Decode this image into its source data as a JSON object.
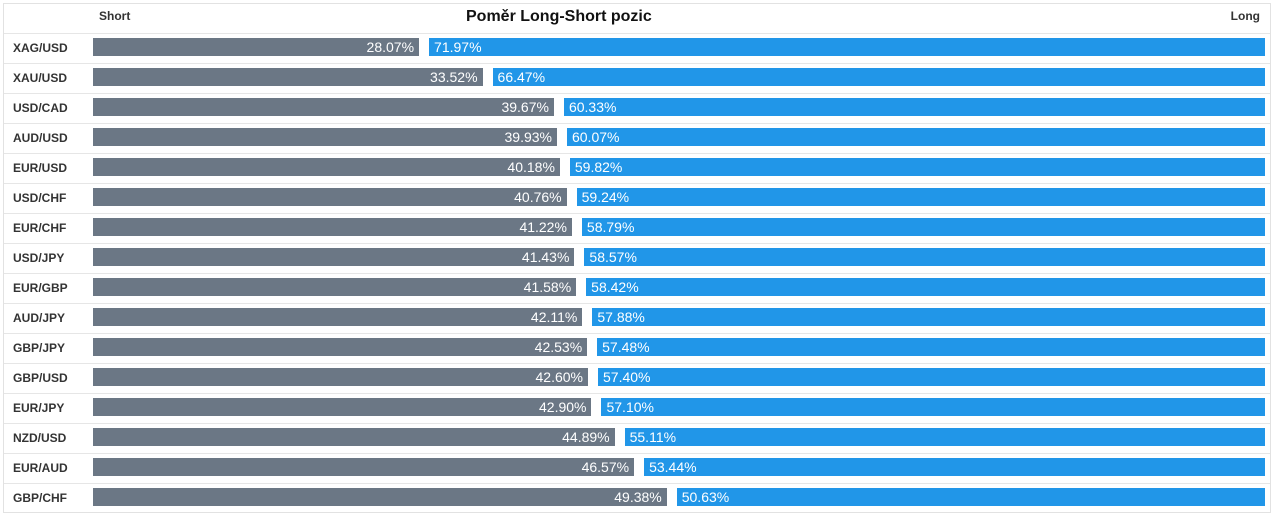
{
  "header": {
    "short_label": "Short",
    "long_label": "Long",
    "title": "Poměr Long-Short pozic"
  },
  "colors": {
    "short": "#6b7785",
    "long": "#2196e8",
    "label_text": "#ffffff"
  },
  "chart_data": {
    "type": "bar",
    "title": "Poměr Long-Short pozic",
    "orientation": "horizontal-stacked",
    "categories": [
      "XAG/USD",
      "XAU/USD",
      "USD/CAD",
      "AUD/USD",
      "EUR/USD",
      "USD/CHF",
      "EUR/CHF",
      "USD/JPY",
      "EUR/GBP",
      "AUD/JPY",
      "GBP/JPY",
      "GBP/USD",
      "EUR/JPY",
      "NZD/USD",
      "EUR/AUD",
      "GBP/CHF"
    ],
    "series": [
      {
        "name": "Short",
        "values": [
          28.07,
          33.52,
          39.67,
          39.93,
          40.18,
          40.76,
          41.22,
          41.43,
          41.58,
          42.11,
          42.53,
          42.6,
          42.9,
          44.89,
          46.57,
          49.38
        ]
      },
      {
        "name": "Long",
        "values": [
          71.97,
          66.47,
          60.33,
          60.07,
          59.82,
          59.24,
          58.79,
          58.57,
          58.42,
          57.88,
          57.48,
          57.4,
          57.1,
          55.11,
          53.44,
          50.63
        ]
      }
    ],
    "value_labels": {
      "short": [
        "28.07%",
        "33.52%",
        "39.67%",
        "39.93%",
        "40.18%",
        "40.76%",
        "41.22%",
        "41.43%",
        "41.58%",
        "42.11%",
        "42.53%",
        "42.60%",
        "42.90%",
        "44.89%",
        "46.57%",
        "49.38%"
      ],
      "long": [
        "71.97%",
        "66.47%",
        "60.33%",
        "60.07%",
        "59.82%",
        "59.24%",
        "58.79%",
        "58.57%",
        "58.42%",
        "57.88%",
        "57.48%",
        "57.40%",
        "57.10%",
        "55.11%",
        "53.44%",
        "50.63%"
      ]
    },
    "xlim": [
      0,
      100
    ],
    "legend": "top"
  }
}
